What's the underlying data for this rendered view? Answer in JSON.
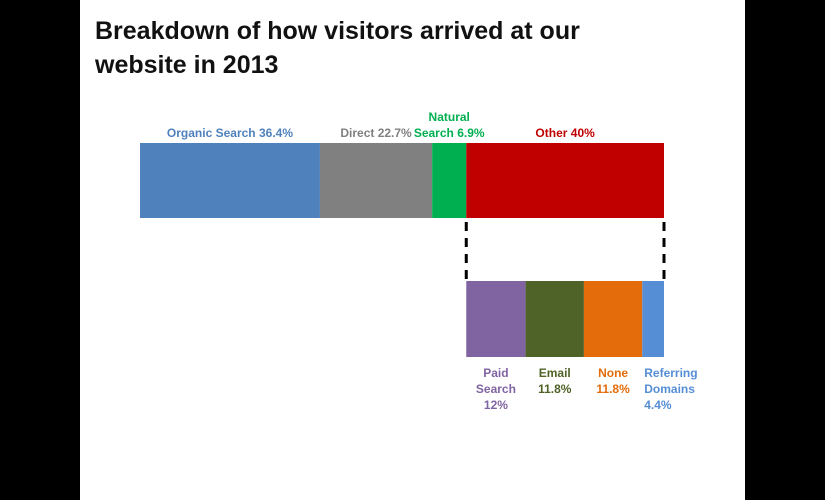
{
  "chart_data": [
    {
      "type": "stacked-bar",
      "title": "Breakdown of how visitors arrived at our website in 2013",
      "series": [
        {
          "name": "Organic Search",
          "color": "#4f81bd",
          "values": [
            36.4
          ],
          "value_labels": [
            "36.4%"
          ]
        },
        {
          "name": "Direct",
          "color": "#808080",
          "values": [
            22.7
          ],
          "value_labels": [
            "22.7%"
          ]
        },
        {
          "name": "Natural Search",
          "color": "#00b050",
          "values": [
            6.9
          ],
          "value_labels": [
            "6.9%"
          ]
        },
        {
          "name": "Other",
          "color": "#c00000",
          "values": [
            40
          ],
          "value_labels": [
            "40%"
          ]
        }
      ]
    },
    {
      "type": "stacked-bar",
      "series": [
        {
          "name": "Paid Search",
          "color": "#8064a2",
          "values": [
            12
          ],
          "value_labels": [
            "12%"
          ]
        },
        {
          "name": "Email",
          "color": "#4f6228",
          "values": [
            11.8
          ],
          "value_labels": [
            "11.8%"
          ]
        },
        {
          "name": "None",
          "color": "#e46c0a",
          "values": [
            11.8
          ],
          "value_labels": [
            "11.8%"
          ]
        },
        {
          "name": "Referring Domains",
          "color": "#558ed5",
          "values": [
            4.4
          ],
          "value_labels": [
            "4.4%"
          ]
        }
      ]
    }
  ]
}
